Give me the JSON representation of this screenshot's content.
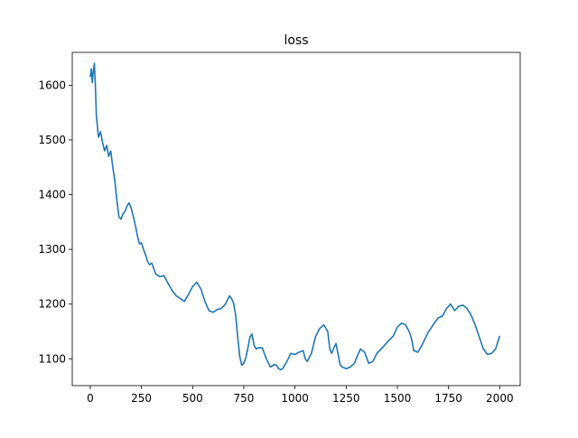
{
  "chart_data": {
    "type": "line",
    "title": "loss",
    "xlabel": "",
    "ylabel": "",
    "xlim": [
      -88,
      2100
    ],
    "ylim": [
      1051,
      1660
    ],
    "x_ticks": [
      0,
      250,
      500,
      750,
      1000,
      1250,
      1500,
      1750,
      2000
    ],
    "y_ticks": [
      1100,
      1200,
      1300,
      1400,
      1500,
      1600
    ],
    "grid": false,
    "legend": "none",
    "series": [
      {
        "color": "#1f77b4",
        "x": [
          0,
          5,
          10,
          15,
          20,
          25,
          30,
          40,
          50,
          60,
          70,
          80,
          90,
          100,
          110,
          120,
          130,
          140,
          150,
          160,
          170,
          180,
          190,
          200,
          210,
          220,
          230,
          240,
          250,
          260,
          270,
          280,
          290,
          300,
          310,
          320,
          340,
          360,
          380,
          400,
          420,
          440,
          460,
          480,
          500,
          520,
          540,
          560,
          580,
          600,
          620,
          640,
          660,
          680,
          690,
          700,
          710,
          720,
          730,
          740,
          750,
          760,
          770,
          780,
          790,
          800,
          810,
          820,
          840,
          860,
          880,
          900,
          910,
          920,
          930,
          940,
          960,
          980,
          1000,
          1020,
          1040,
          1050,
          1060,
          1080,
          1100,
          1120,
          1140,
          1160,
          1170,
          1180,
          1190,
          1200,
          1210,
          1220,
          1230,
          1250,
          1270,
          1290,
          1310,
          1320,
          1340,
          1360,
          1380,
          1400,
          1420,
          1450,
          1480,
          1500,
          1520,
          1540,
          1560,
          1570,
          1580,
          1600,
          1620,
          1650,
          1680,
          1700,
          1720,
          1740,
          1760,
          1780,
          1800,
          1820,
          1840,
          1860,
          1880,
          1900,
          1920,
          1940,
          1960,
          1980,
          2000
        ],
        "values": [
          1615,
          1630,
          1605,
          1625,
          1640,
          1600,
          1545,
          1505,
          1515,
          1495,
          1480,
          1490,
          1470,
          1480,
          1450,
          1425,
          1390,
          1360,
          1355,
          1365,
          1370,
          1380,
          1385,
          1375,
          1360,
          1345,
          1325,
          1310,
          1312,
          1300,
          1290,
          1278,
          1272,
          1275,
          1265,
          1255,
          1250,
          1252,
          1238,
          1225,
          1215,
          1210,
          1205,
          1218,
          1232,
          1240,
          1228,
          1205,
          1188,
          1185,
          1190,
          1192,
          1200,
          1215,
          1210,
          1202,
          1180,
          1140,
          1105,
          1088,
          1092,
          1102,
          1120,
          1140,
          1145,
          1125,
          1118,
          1120,
          1120,
          1100,
          1085,
          1090,
          1088,
          1082,
          1080,
          1082,
          1095,
          1110,
          1108,
          1112,
          1115,
          1100,
          1095,
          1110,
          1140,
          1155,
          1162,
          1150,
          1118,
          1110,
          1120,
          1128,
          1110,
          1090,
          1085,
          1082,
          1085,
          1092,
          1110,
          1118,
          1112,
          1092,
          1095,
          1110,
          1118,
          1130,
          1142,
          1158,
          1165,
          1162,
          1148,
          1135,
          1115,
          1112,
          1125,
          1148,
          1165,
          1175,
          1178,
          1192,
          1200,
          1188,
          1196,
          1198,
          1192,
          1180,
          1162,
          1140,
          1118,
          1108,
          1110,
          1118,
          1142
        ]
      }
    ]
  }
}
